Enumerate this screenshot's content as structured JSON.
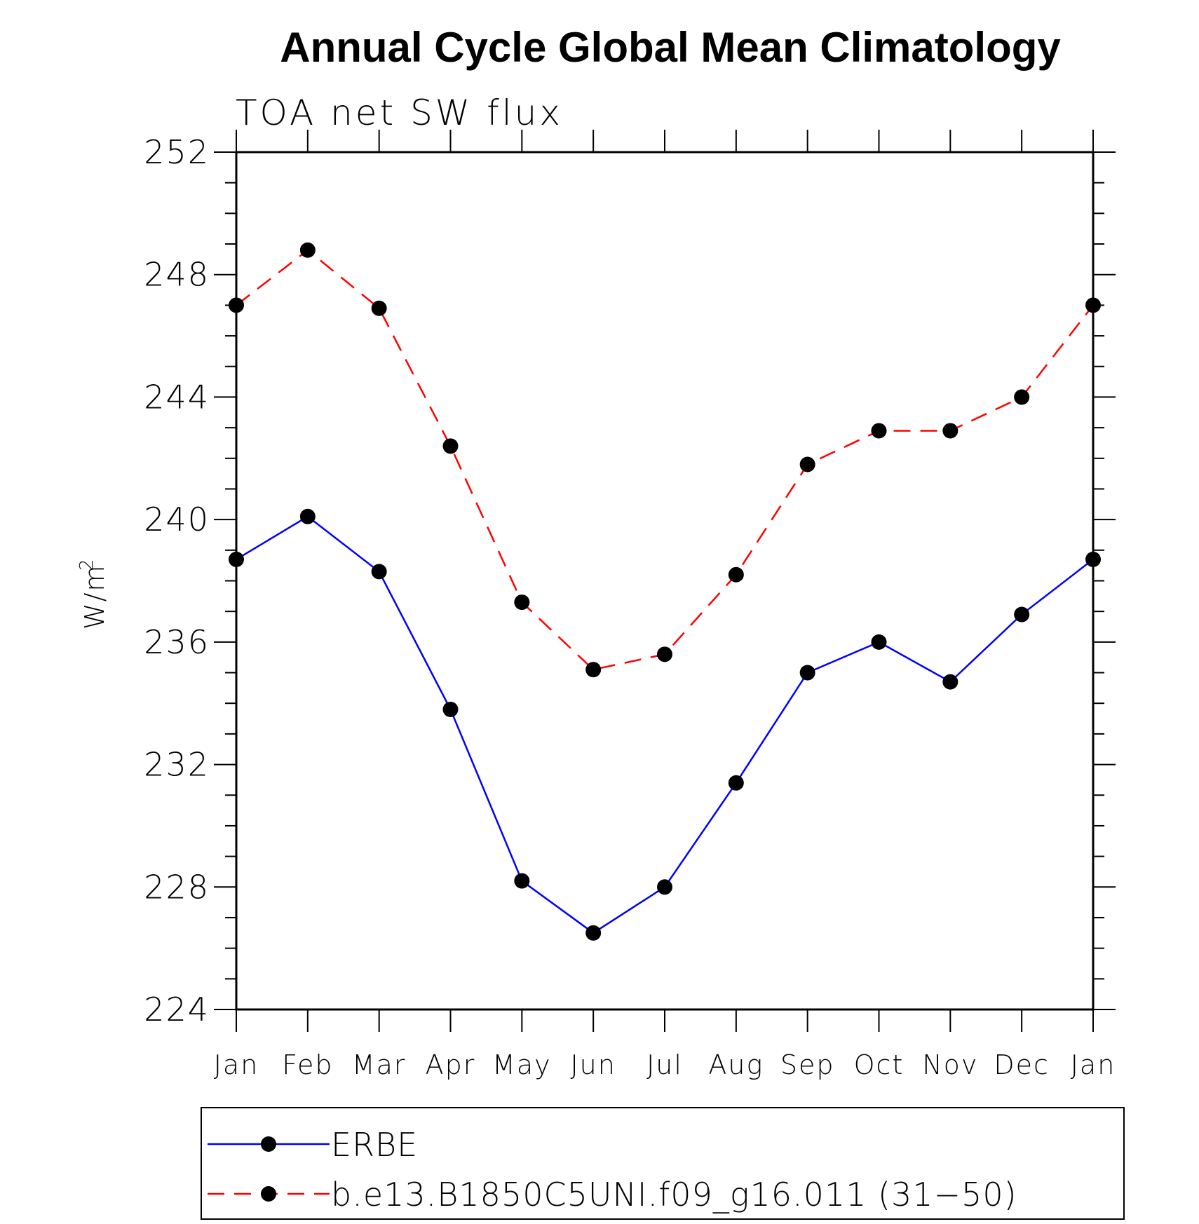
{
  "chart_data": {
    "type": "line",
    "title": "Annual Cycle Global Mean Climatology",
    "subtitle": "TOA net SW flux",
    "ylabel": "W/m",
    "ylabel_sup": "2",
    "xlabel": "",
    "categories": [
      "Jan",
      "Feb",
      "Mar",
      "Apr",
      "May",
      "Jun",
      "Jul",
      "Aug",
      "Sep",
      "Oct",
      "Nov",
      "Dec",
      "Jan"
    ],
    "ylim": [
      224,
      252
    ],
    "yticks": [
      224,
      228,
      232,
      236,
      240,
      244,
      248,
      252
    ],
    "grid": false,
    "legend_position": "bottom",
    "series": [
      {
        "name": "ERBE",
        "color": "#0000ff",
        "style": "solid",
        "marker": "filled-circle",
        "values": [
          238.7,
          240.1,
          238.3,
          233.8,
          228.2,
          226.5,
          228.0,
          231.4,
          235.0,
          236.0,
          234.7,
          236.9,
          238.7
        ]
      },
      {
        "name": "b.e13.B1850C5UNI.f09_g16.011 (31−50)",
        "color": "#ff0000",
        "style": "dashed",
        "marker": "filled-circle",
        "values": [
          247.0,
          248.8,
          246.9,
          242.4,
          237.3,
          235.1,
          235.6,
          238.2,
          241.8,
          242.9,
          242.9,
          244.0,
          247.0
        ]
      }
    ]
  }
}
